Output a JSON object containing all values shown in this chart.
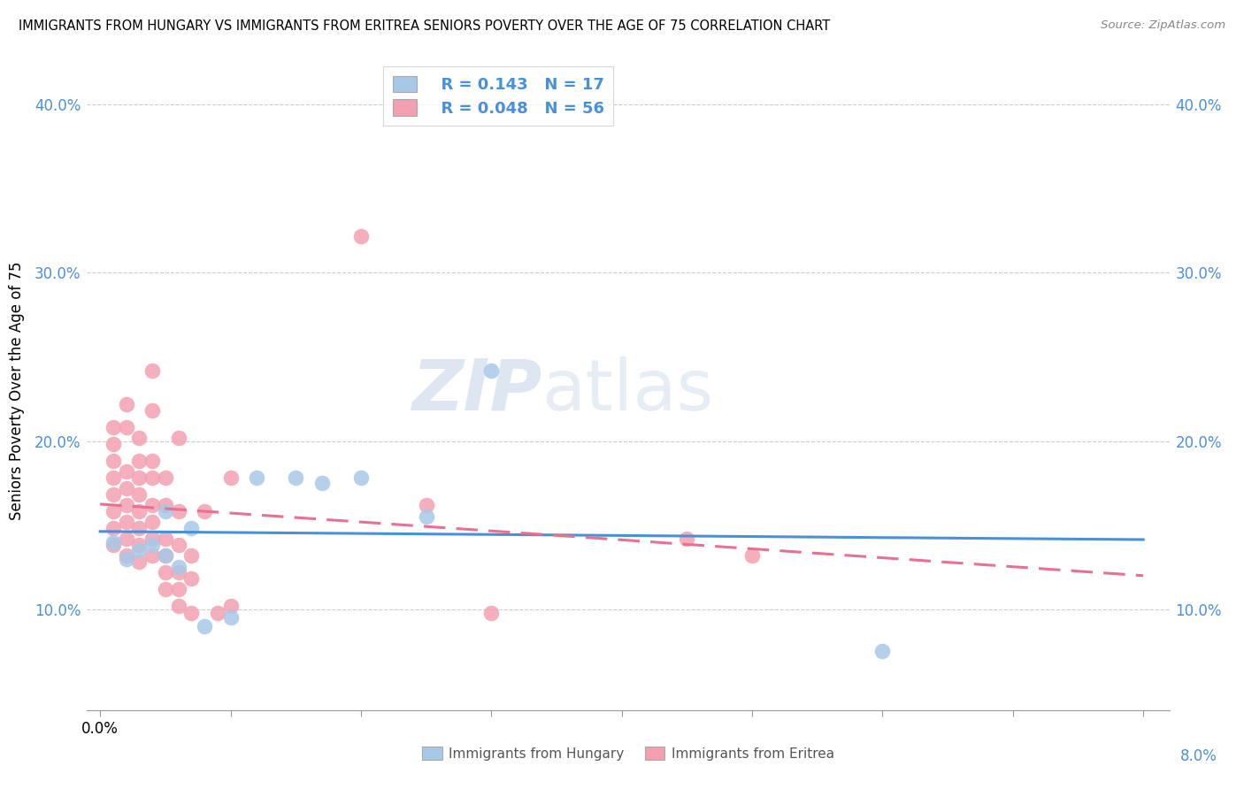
{
  "title": "IMMIGRANTS FROM HUNGARY VS IMMIGRANTS FROM ERITREA SENIORS POVERTY OVER THE AGE OF 75 CORRELATION CHART",
  "source": "Source: ZipAtlas.com",
  "ylabel": "Seniors Poverty Over the Age of 75",
  "hungary_R": "0.143",
  "hungary_N": "17",
  "eritrea_R": "0.048",
  "eritrea_N": "56",
  "hungary_color": "#a8c8e8",
  "eritrea_color": "#f4a0b0",
  "hungary_line_color": "#4a90d9",
  "eritrea_line_color": "#e87090",
  "watermark_zip": "ZIP",
  "watermark_atlas": "atlas",
  "ylim": [
    0.04,
    0.42
  ],
  "xlim": [
    -0.001,
    0.082
  ],
  "ytick_vals": [
    0.1,
    0.2,
    0.3,
    0.4
  ],
  "ytick_labels": [
    "10.0%",
    "20.0%",
    "30.0%",
    "40.0%"
  ],
  "hungary_scatter": [
    [
      0.001,
      0.14
    ],
    [
      0.002,
      0.13
    ],
    [
      0.003,
      0.135
    ],
    [
      0.004,
      0.138
    ],
    [
      0.005,
      0.132
    ],
    [
      0.005,
      0.158
    ],
    [
      0.006,
      0.125
    ],
    [
      0.007,
      0.148
    ],
    [
      0.008,
      0.09
    ],
    [
      0.01,
      0.095
    ],
    [
      0.012,
      0.178
    ],
    [
      0.015,
      0.178
    ],
    [
      0.017,
      0.175
    ],
    [
      0.02,
      0.178
    ],
    [
      0.025,
      0.155
    ],
    [
      0.03,
      0.242
    ],
    [
      0.06,
      0.075
    ]
  ],
  "eritrea_scatter": [
    [
      0.001,
      0.138
    ],
    [
      0.001,
      0.148
    ],
    [
      0.001,
      0.158
    ],
    [
      0.001,
      0.168
    ],
    [
      0.001,
      0.178
    ],
    [
      0.001,
      0.188
    ],
    [
      0.001,
      0.198
    ],
    [
      0.001,
      0.208
    ],
    [
      0.002,
      0.132
    ],
    [
      0.002,
      0.142
    ],
    [
      0.002,
      0.152
    ],
    [
      0.002,
      0.162
    ],
    [
      0.002,
      0.172
    ],
    [
      0.002,
      0.182
    ],
    [
      0.002,
      0.208
    ],
    [
      0.002,
      0.222
    ],
    [
      0.003,
      0.128
    ],
    [
      0.003,
      0.138
    ],
    [
      0.003,
      0.148
    ],
    [
      0.003,
      0.158
    ],
    [
      0.003,
      0.168
    ],
    [
      0.003,
      0.178
    ],
    [
      0.003,
      0.188
    ],
    [
      0.003,
      0.202
    ],
    [
      0.004,
      0.132
    ],
    [
      0.004,
      0.142
    ],
    [
      0.004,
      0.152
    ],
    [
      0.004,
      0.162
    ],
    [
      0.004,
      0.178
    ],
    [
      0.004,
      0.188
    ],
    [
      0.004,
      0.218
    ],
    [
      0.004,
      0.242
    ],
    [
      0.005,
      0.112
    ],
    [
      0.005,
      0.122
    ],
    [
      0.005,
      0.132
    ],
    [
      0.005,
      0.142
    ],
    [
      0.005,
      0.162
    ],
    [
      0.005,
      0.178
    ],
    [
      0.006,
      0.102
    ],
    [
      0.006,
      0.112
    ],
    [
      0.006,
      0.122
    ],
    [
      0.006,
      0.138
    ],
    [
      0.006,
      0.158
    ],
    [
      0.006,
      0.202
    ],
    [
      0.007,
      0.098
    ],
    [
      0.007,
      0.118
    ],
    [
      0.007,
      0.132
    ],
    [
      0.008,
      0.158
    ],
    [
      0.009,
      0.098
    ],
    [
      0.01,
      0.102
    ],
    [
      0.01,
      0.178
    ],
    [
      0.02,
      0.322
    ],
    [
      0.025,
      0.162
    ],
    [
      0.03,
      0.098
    ],
    [
      0.045,
      0.142
    ],
    [
      0.05,
      0.132
    ]
  ]
}
